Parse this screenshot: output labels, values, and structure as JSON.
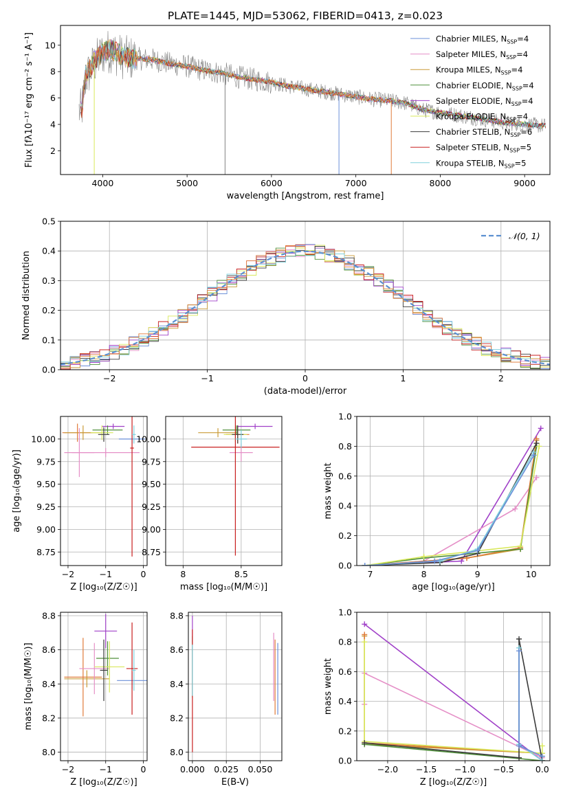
{
  "figure_title": "PLATE=1445, MJD=53062, FIBERID=0413, z=0.023",
  "colors": [
    "#6a8fd8",
    "#e58fc7",
    "#c99a36",
    "#4f8f3a",
    "#a040c8",
    "#d8e85a",
    "#3a3a3a",
    "#c81e1e",
    "#7fd0dc",
    "#e07a38"
  ],
  "chart_data": [
    {
      "id": "spectrum",
      "type": "line",
      "title": "PLATE=1445, MJD=53062, FIBERID=0413, z=0.023",
      "xlabel": "wavelength [Angstrom, rest frame]",
      "ylabel": "Flux [fλ10⁻¹⁷ erg cm⁻² s⁻¹ A⁻¹]",
      "xlim": [
        3500,
        9300
      ],
      "ylim": [
        0.2,
        11.5
      ],
      "xticks": [
        4000,
        5000,
        6000,
        7000,
        8000,
        9000
      ],
      "yticks": [
        2,
        4,
        6,
        8,
        10
      ],
      "grid": false,
      "legend_position": "top-right",
      "legend": [
        {
          "label": "Chabrier MILES, N",
          "sub": "SSP",
          "tail": "=4",
          "color": "#6a8fd8"
        },
        {
          "label": "Salpeter MILES, N",
          "sub": "SSP",
          "tail": "=4",
          "color": "#e58fc7"
        },
        {
          "label": "Kroupa MILES, N",
          "sub": "SSP",
          "tail": "=4",
          "color": "#c99a36"
        },
        {
          "label": "Chabrier ELODIE, N",
          "sub": "SSP",
          "tail": "=4",
          "color": "#4f8f3a"
        },
        {
          "label": "Salpeter ELODIE, N",
          "sub": "SSP",
          "tail": "=4",
          "color": "#a040c8"
        },
        {
          "label": "Kroupa ELODIE, N",
          "sub": "SSP",
          "tail": "=4",
          "color": "#d8e85a"
        },
        {
          "label": "Chabrier STELIB, N",
          "sub": "SSP",
          "tail": "=6",
          "color": "#3a3a3a"
        },
        {
          "label": "Salpeter STELIB, N",
          "sub": "SSP",
          "tail": "=5",
          "color": "#c81e1e"
        },
        {
          "label": "Kroupa STELIB, N",
          "sub": "SSP",
          "tail": "=5",
          "color": "#7fd0dc"
        }
      ],
      "data_series": {
        "name": "data",
        "color": "#808080",
        "x": [
          3750,
          3800,
          3900,
          4000,
          4100,
          4200,
          4300,
          4400,
          4600,
          4800,
          5000,
          5200,
          5400,
          5600,
          5800,
          6000,
          6200,
          6400,
          6600,
          6800,
          7000,
          7200,
          7400,
          7600,
          7800,
          8000,
          8200,
          8400,
          8600,
          8800,
          9000,
          9200
        ],
        "y": [
          5.0,
          7.5,
          8.6,
          9.4,
          9.6,
          9.2,
          9.0,
          9.0,
          8.9,
          8.6,
          8.4,
          8.1,
          7.9,
          7.6,
          7.4,
          7.2,
          6.9,
          6.7,
          6.5,
          6.3,
          6.1,
          5.9,
          5.8,
          5.6,
          5.1,
          4.9,
          4.7,
          4.5,
          4.3,
          4.1,
          4.0,
          3.9
        ]
      },
      "model_series": {
        "name": "model",
        "color": "#7fd0dc",
        "x": [
          3750,
          3800,
          3900,
          4000,
          4100,
          4200,
          4300,
          4400,
          4600,
          4800,
          5000,
          5200,
          5400,
          5600,
          5800,
          6000,
          6200,
          6400,
          6600,
          6800,
          7000,
          7200,
          7400,
          7600,
          7800,
          8000,
          8200,
          8400,
          8600,
          8800,
          9000,
          9200
        ],
        "y": [
          5.0,
          7.8,
          8.8,
          9.5,
          9.7,
          9.3,
          9.1,
          9.0,
          8.9,
          8.6,
          8.4,
          8.1,
          7.9,
          7.6,
          7.4,
          7.2,
          6.9,
          6.7,
          6.5,
          6.3,
          6.1,
          5.9,
          5.8,
          5.6,
          5.1,
          4.9,
          4.7,
          4.5,
          4.3,
          4.1,
          4.0,
          3.9
        ]
      },
      "spikes": [
        {
          "x": 5450,
          "y_low": 0.2,
          "color": "#808080"
        },
        {
          "x": 6800,
          "y_low": 0.2,
          "color": "#6a8fd8"
        },
        {
          "x": 7420,
          "y_low": 0.2,
          "color": "#e07a38"
        },
        {
          "x": 3900,
          "y_low": 0.2,
          "color": "#d8e85a"
        }
      ]
    },
    {
      "id": "residuals",
      "type": "line",
      "xlabel": "(data-model)/error",
      "ylabel": "Normed distribution",
      "xlim": [
        -2.5,
        2.5
      ],
      "ylim": [
        0,
        0.5
      ],
      "xticks": [
        -2,
        -1,
        0,
        1,
        2
      ],
      "yticks": [
        0.0,
        0.1,
        0.2,
        0.3,
        0.4,
        0.5
      ],
      "grid": true,
      "legend_position": "top-right",
      "legend": [
        {
          "label": "𝒩(0, 1)",
          "color": "#5b8fd0",
          "style": "dashed"
        }
      ],
      "gaussian": {
        "mu": 0,
        "sigma": 1,
        "color": "#5b8fd0"
      },
      "histogram_bin_width": 0.1
    },
    {
      "id": "age-z",
      "type": "scatter",
      "xlabel": "Z [log₁₀(Z/Z☉)]",
      "ylabel": "age  [log₁₀(age/yr)]",
      "xlim": [
        -2.2,
        0.1
      ],
      "ylim": [
        8.6,
        10.25
      ],
      "xticks": [
        -2,
        -1,
        0
      ],
      "yticks": [
        8.75,
        9.0,
        9.25,
        9.5,
        9.75,
        10.0
      ],
      "grid": true,
      "points": [
        {
          "x": -1.75,
          "y": 10.07,
          "xerr": 0.4,
          "yerr": 0.1,
          "color": "#e07a38"
        },
        {
          "x": -1.6,
          "y": 10.07,
          "xerr": 0.5,
          "yerr": 0.08,
          "color": "#c99a36"
        },
        {
          "x": -1.7,
          "y": 9.85,
          "xerr": 0.4,
          "yerr": 0.27,
          "color": "#e58fc7"
        },
        {
          "x": -1.0,
          "y": 9.85,
          "xerr": 0.9,
          "yerr": 0.05,
          "color": "#e58fc7"
        },
        {
          "x": -0.8,
          "y": 10.14,
          "xerr": 0.3,
          "yerr": 0.03,
          "color": "#a040c8"
        },
        {
          "x": -0.95,
          "y": 10.1,
          "xerr": 0.4,
          "yerr": 0.05,
          "color": "#4f8f3a"
        },
        {
          "x": -1.1,
          "y": 10.07,
          "xerr": 0.3,
          "yerr": 0.08,
          "color": "#d8e85a"
        },
        {
          "x": -1.05,
          "y": 10.05,
          "xerr": 0.15,
          "yerr": 0.08,
          "color": "#3a3a3a"
        },
        {
          "x": -0.3,
          "y": 10.0,
          "xerr": 0.35,
          "yerr": 0.05,
          "color": "#6a8fd8"
        },
        {
          "x": -0.3,
          "y": 9.9,
          "xerr": 0.05,
          "yerr": 1.2,
          "color": "#c81e1e"
        },
        {
          "x": -0.25,
          "y": 10.05,
          "xerr": 0.05,
          "yerr": 0.1,
          "color": "#7fd0dc"
        }
      ]
    },
    {
      "id": "age-mass",
      "type": "scatter",
      "xlabel": "mass [log₁₀(M/M☉)]",
      "ylabel": "",
      "xlim": [
        7.85,
        8.85
      ],
      "ylim": [
        8.6,
        10.25
      ],
      "xticks": [
        8.0,
        8.5
      ],
      "yticks": [
        8.75,
        9.0,
        9.25,
        9.5,
        9.75,
        10.0
      ],
      "grid": true,
      "points": [
        {
          "x": 8.3,
          "y": 10.07,
          "xerr": 0.17,
          "yerr": 0.05,
          "color": "#c99a36"
        },
        {
          "x": 8.47,
          "y": 10.05,
          "xerr": 0.1,
          "yerr": 0.1,
          "color": "#e07a38"
        },
        {
          "x": 8.5,
          "y": 9.85,
          "xerr": 0.1,
          "yerr": 0.1,
          "color": "#e58fc7"
        },
        {
          "x": 8.62,
          "y": 10.14,
          "xerr": 0.15,
          "yerr": 0.03,
          "color": "#a040c8"
        },
        {
          "x": 8.46,
          "y": 10.1,
          "xerr": 0.12,
          "yerr": 0.05,
          "color": "#4f8f3a"
        },
        {
          "x": 8.45,
          "y": 10.05,
          "xerr": 0.1,
          "yerr": 0.08,
          "color": "#d8e85a"
        },
        {
          "x": 8.47,
          "y": 10.05,
          "xerr": 0.05,
          "yerr": 0.1,
          "color": "#3a3a3a"
        },
        {
          "x": 8.45,
          "y": 9.91,
          "xerr": 0.38,
          "yerr": 1.2,
          "color": "#c81e1e"
        },
        {
          "x": 8.5,
          "y": 10.0,
          "xerr": 0.05,
          "yerr": 0.1,
          "color": "#7fd0dc"
        }
      ]
    },
    {
      "id": "weight-age",
      "type": "line",
      "xlabel": "age  [log₁₀(age/yr)]",
      "ylabel": "mass weight",
      "xlim": [
        6.75,
        10.35
      ],
      "ylim": [
        0,
        1.0
      ],
      "xticks": [
        7,
        8,
        9,
        10
      ],
      "yticks": [
        0.0,
        0.2,
        0.4,
        0.6,
        0.8,
        1.0
      ],
      "grid": true,
      "series": [
        {
          "color": "#a040c8",
          "x": [
            6.9,
            8.7,
            10.18
          ],
          "y": [
            0.0,
            0.03,
            0.92
          ]
        },
        {
          "color": "#e58fc7",
          "x": [
            6.9,
            8.0,
            9.7,
            10.1
          ],
          "y": [
            0.0,
            0.03,
            0.38,
            0.59
          ]
        },
        {
          "color": "#c99a36",
          "x": [
            6.9,
            8.8,
            9.8,
            10.1
          ],
          "y": [
            0.0,
            0.05,
            0.11,
            0.84
          ]
        },
        {
          "color": "#e07a38",
          "x": [
            6.9,
            8.8,
            9.8,
            10.1
          ],
          "y": [
            0.0,
            0.05,
            0.12,
            0.85
          ]
        },
        {
          "color": "#4f8f3a",
          "x": [
            6.9,
            8.0,
            9.8,
            10.1
          ],
          "y": [
            0.0,
            0.05,
            0.11,
            0.8
          ]
        },
        {
          "color": "#d8e85a",
          "x": [
            6.9,
            8.0,
            9.8,
            10.15
          ],
          "y": [
            0.0,
            0.06,
            0.13,
            0.8
          ]
        },
        {
          "color": "#3a3a3a",
          "x": [
            6.9,
            8.3,
            9.0,
            10.1
          ],
          "y": [
            0.0,
            0.02,
            0.08,
            0.82
          ]
        },
        {
          "color": "#7fd0dc",
          "x": [
            6.9,
            8.3,
            9.0,
            10.05
          ],
          "y": [
            0.0,
            0.03,
            0.11,
            0.76
          ]
        },
        {
          "color": "#6a8fd8",
          "x": [
            6.9,
            8.2,
            9.0,
            10.05
          ],
          "y": [
            0.0,
            0.03,
            0.1,
            0.74
          ]
        }
      ]
    },
    {
      "id": "mass-z",
      "type": "scatter",
      "xlabel": "Z [log₁₀(Z/Z☉)]",
      "ylabel": "mass [log₁₀(M/M☉)]",
      "xlim": [
        -2.2,
        0.1
      ],
      "ylim": [
        7.95,
        8.82
      ],
      "xticks": [
        -2,
        -1,
        0
      ],
      "yticks": [
        8.0,
        8.2,
        8.4,
        8.6,
        8.8
      ],
      "grid": true,
      "points": [
        {
          "x": -1.6,
          "y": 8.44,
          "xerr": 0.5,
          "yerr": 0.23,
          "color": "#e07a38"
        },
        {
          "x": -1.5,
          "y": 8.43,
          "xerr": 0.6,
          "yerr": 0.05,
          "color": "#c99a36"
        },
        {
          "x": -1.3,
          "y": 8.49,
          "xerr": 0.4,
          "yerr": 0.15,
          "color": "#e58fc7"
        },
        {
          "x": -1.0,
          "y": 8.71,
          "xerr": 0.3,
          "yerr": 0.1,
          "color": "#a040c8"
        },
        {
          "x": -0.95,
          "y": 8.55,
          "xerr": 0.3,
          "yerr": 0.1,
          "color": "#4f8f3a"
        },
        {
          "x": -0.9,
          "y": 8.5,
          "xerr": 0.4,
          "yerr": 0.15,
          "color": "#d8e85a"
        },
        {
          "x": -1.05,
          "y": 8.48,
          "xerr": 0.1,
          "yerr": 0.18,
          "color": "#3a3a3a"
        },
        {
          "x": -0.3,
          "y": 8.42,
          "xerr": 0.4,
          "yerr": 0.05,
          "color": "#6a8fd8"
        },
        {
          "x": -0.3,
          "y": 8.49,
          "xerr": 0.15,
          "yerr": 0.27,
          "color": "#c81e1e"
        },
        {
          "x": -0.25,
          "y": 8.48,
          "xerr": 0.05,
          "yerr": 0.12,
          "color": "#7fd0dc"
        }
      ]
    },
    {
      "id": "mass-ebv",
      "type": "scatter",
      "xlabel": "E(B-V)",
      "ylabel": "",
      "xlim": [
        -0.003,
        0.066
      ],
      "ylim": [
        7.95,
        8.82
      ],
      "xticks": [
        0.0,
        0.025,
        0.05
      ],
      "xticklabels": [
        "0.000",
        "0.025",
        "0.050"
      ],
      "yticks": [
        8.0,
        8.2,
        8.4,
        8.6,
        8.8
      ],
      "grid": true,
      "points": [
        {
          "x": 0.0,
          "y": 8.72,
          "xerr": 0.0,
          "yerr": 0.08,
          "color": "#a040c8"
        },
        {
          "x": 0.0,
          "y": 8.5,
          "xerr": 0.0,
          "yerr": 0.18,
          "color": "#4f8f3a"
        },
        {
          "x": 0.0,
          "y": 8.36,
          "xerr": 0.0,
          "yerr": 0.36,
          "color": "#c81e1e"
        },
        {
          "x": 0.0,
          "y": 8.48,
          "xerr": 0.0,
          "yerr": 0.15,
          "color": "#7fd0dc"
        },
        {
          "x": 0.06,
          "y": 8.5,
          "xerr": 0.0,
          "yerr": 0.2,
          "color": "#e58fc7"
        },
        {
          "x": 0.061,
          "y": 8.44,
          "xerr": 0.0,
          "yerr": 0.22,
          "color": "#e07a38"
        },
        {
          "x": 0.063,
          "y": 8.43,
          "xerr": 0.0,
          "yerr": 0.21,
          "color": "#6a8fd8"
        }
      ]
    },
    {
      "id": "weight-z",
      "type": "line",
      "xlabel": "Z [log₁₀(Z/Z☉)]",
      "ylabel": "mass weight",
      "xlim": [
        -2.4,
        0.1
      ],
      "ylim": [
        0,
        1.0
      ],
      "xticks": [
        -2.0,
        -1.5,
        -1.0,
        -0.5,
        0.0
      ],
      "xticklabels": [
        "−2.0",
        "−1.5",
        "−1.0",
        "−0.5",
        "0.0"
      ],
      "yticks": [
        0.0,
        0.2,
        0.4,
        0.6,
        0.8,
        1.0
      ],
      "grid": true,
      "series": [
        {
          "color": "#a040c8",
          "x": [
            -2.3,
            0.0
          ],
          "y": [
            0.92,
            0.0
          ]
        },
        {
          "color": "#e58fc7",
          "x": [
            -2.3,
            -2.3,
            0.0
          ],
          "y": [
            0.38,
            0.59,
            0.02
          ]
        },
        {
          "color": "#c99a36",
          "x": [
            -2.3,
            -2.3,
            0.0,
            0.0
          ],
          "y": [
            0.84,
            0.11,
            0.05,
            0.0
          ]
        },
        {
          "color": "#e07a38",
          "x": [
            -2.3,
            -2.3,
            0.0,
            0.0
          ],
          "y": [
            0.85,
            0.12,
            0.05,
            0.0
          ]
        },
        {
          "color": "#4f8f3a",
          "x": [
            -2.3,
            0.0,
            0.0
          ],
          "y": [
            0.11,
            0.0,
            0.03
          ]
        },
        {
          "color": "#d8e85a",
          "x": [
            -2.3,
            -2.3,
            0.0,
            0.0
          ],
          "y": [
            0.8,
            0.13,
            0.05,
            0.1
          ]
        },
        {
          "color": "#3a3a3a",
          "x": [
            -2.3,
            -0.3,
            -0.3,
            0.0
          ],
          "y": [
            0.12,
            0.02,
            0.82,
            0.0
          ]
        },
        {
          "color": "#7fd0dc",
          "x": [
            -0.3,
            -0.3,
            0.0
          ],
          "y": [
            0.76,
            0.11,
            0.0
          ]
        },
        {
          "color": "#6a8fd8",
          "x": [
            -0.3,
            -0.3,
            0.0
          ],
          "y": [
            0.74,
            0.1,
            0.03
          ]
        }
      ]
    }
  ]
}
